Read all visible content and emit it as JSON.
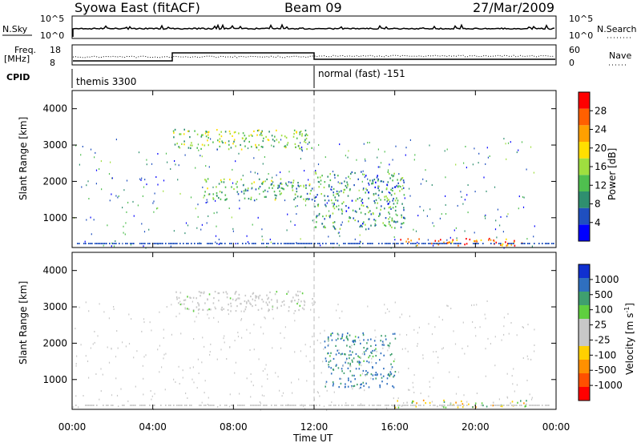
{
  "header": {
    "title": "Syowa East (fitACF)",
    "beam": "Beam 09",
    "date": "27/Mar/2009"
  },
  "top_panels": {
    "nsky_label": "N.Sky",
    "nsky_ticks": [
      "10^5",
      "10^0"
    ],
    "nsearch_label": "N.Search",
    "nsearch_ticks": [
      "10^5",
      "10^0"
    ],
    "freq_label_1": "Freq.",
    "freq_label_2": "[MHz]",
    "freq_ticks": [
      "18",
      "8"
    ],
    "nave_label": "Nave",
    "nave_ticks": [
      "60",
      "0"
    ],
    "cpid_label": "CPID",
    "cpid_1": "themis 3300",
    "cpid_2": "normal (fast) -151"
  },
  "power_panel": {
    "ylabel": "Slant Range [km]",
    "yticks": [
      "4000",
      "3000",
      "2000",
      "1000"
    ],
    "colorbar_label": "Power [dB]",
    "colorbar_ticks": [
      "28",
      "24",
      "20",
      "16",
      "12",
      "8",
      "4"
    ],
    "colors": [
      "#0000ff",
      "#1f4fbf",
      "#2f8f6f",
      "#4fbf4f",
      "#9fdf3f",
      "#ffdf00",
      "#ffa000",
      "#ff6000",
      "#ff0000"
    ]
  },
  "velocity_panel": {
    "ylabel": "Slant Range [km]",
    "yticks": [
      "4000",
      "3000",
      "2000",
      "1000"
    ],
    "colorbar_label": "Velocity [m s",
    "colorbar_label_sup": "-1",
    "colorbar_label_end": "]",
    "colorbar_ticks": [
      "1000",
      "500",
      "100",
      "25",
      "-25",
      "-100",
      "-500",
      "-1000"
    ],
    "colors": [
      "#1030d0",
      "#2f6fbf",
      "#3f9f6f",
      "#5fcf3f",
      "#c8c8c8",
      "#c8c8c8",
      "#ffd000",
      "#ff9000",
      "#ff5000",
      "#ff0000"
    ]
  },
  "xaxis": {
    "ticks": [
      "00:00",
      "04:00",
      "08:00",
      "12:00",
      "16:00",
      "20:00",
      "00:00"
    ],
    "label": "Time UT"
  },
  "chart_data": [
    {
      "type": "heatmap",
      "title": "Power",
      "xlabel": "Time UT",
      "ylabel": "Slant Range [km]",
      "xlim": [
        0,
        24
      ],
      "ylim": [
        180,
        4500
      ],
      "colorbar": {
        "label": "Power [dB]",
        "range": [
          0,
          32
        ],
        "ticks": [
          4,
          8,
          12,
          16,
          20,
          24,
          28
        ]
      },
      "regions": [
        {
          "time": [
            5.0,
            11.9
          ],
          "range": [
            2900,
            3450
          ],
          "value": 14
        },
        {
          "time": [
            6.5,
            11.9
          ],
          "range": [
            1500,
            2100
          ],
          "value": 12
        },
        {
          "time": [
            12.0,
            16.5
          ],
          "range": [
            700,
            2300
          ],
          "value": 10
        },
        {
          "time": [
            16.0,
            22.5
          ],
          "range": [
            250,
            450
          ],
          "value": 26
        }
      ]
    },
    {
      "type": "heatmap",
      "title": "Velocity",
      "xlabel": "Time UT",
      "ylabel": "Slant Range [km]",
      "xlim": [
        0,
        24
      ],
      "ylim": [
        180,
        4500
      ],
      "colorbar": {
        "label": "Velocity [m s-1]",
        "range": [
          -1000,
          1000
        ],
        "ticks": [
          1000,
          500,
          100,
          25,
          -25,
          -100,
          -500,
          -1000
        ]
      },
      "regions": [
        {
          "time": [
            5.0,
            11.9
          ],
          "range": [
            2900,
            3450
          ],
          "value": 0
        },
        {
          "time": [
            12.5,
            16.0
          ],
          "range": [
            800,
            2300
          ],
          "value": 500
        },
        {
          "time": [
            16.0,
            22.5
          ],
          "range": [
            250,
            450
          ],
          "value": -200
        }
      ]
    }
  ]
}
